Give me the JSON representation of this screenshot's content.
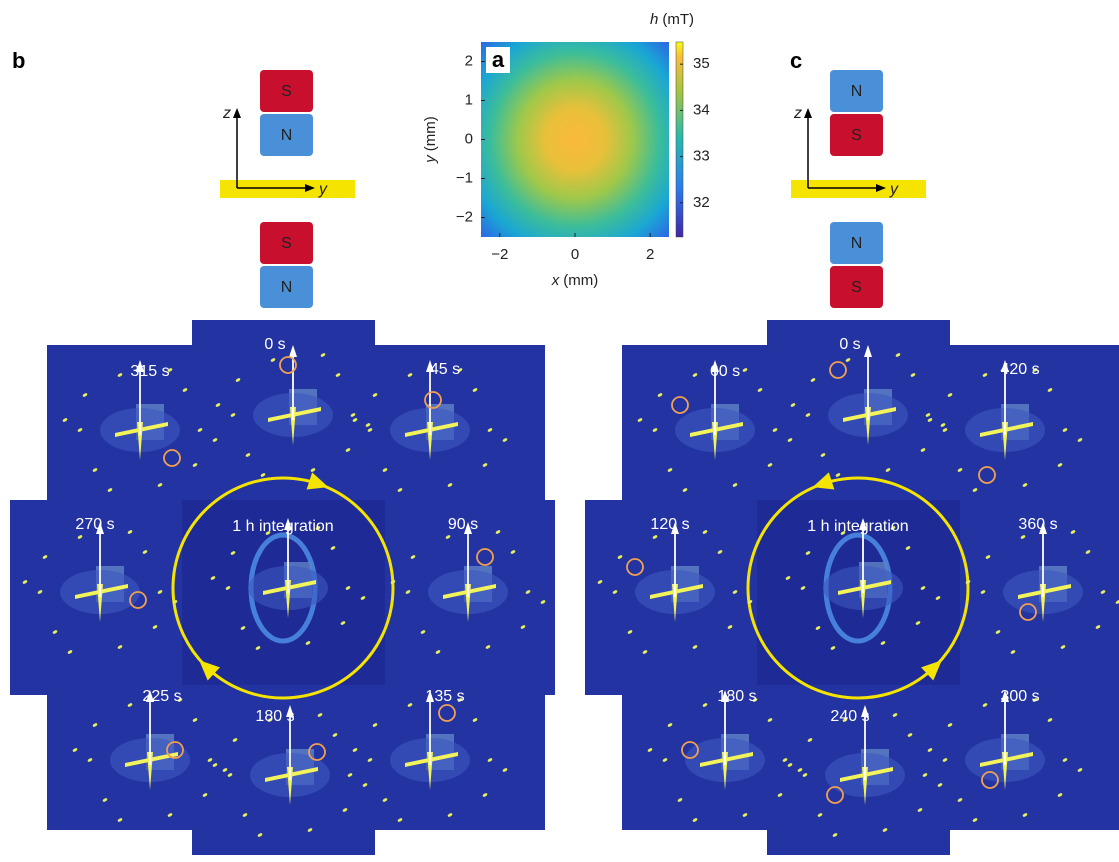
{
  "panel_a": {
    "label": "a",
    "x_axis": {
      "var": "x",
      "unit": "(mm)"
    },
    "y_axis": {
      "var": "y",
      "unit": "(mm)"
    },
    "xlim": [
      -2.5,
      2.5
    ],
    "xticks": [
      {
        "value": -2,
        "label": "−2"
      },
      0,
      2
    ],
    "ylim": [
      -2.5,
      2.5
    ],
    "yticks": [
      {
        "value": -2,
        "label": "−2"
      },
      {
        "value": -1,
        "label": "−1"
      },
      0,
      1,
      2
    ],
    "colorbar": {
      "title": {
        "var": "h",
        "unit": "(mT)"
      },
      "lim": [
        31.26,
        35.48
      ],
      "ticks": [
        32,
        33,
        34,
        35
      ]
    }
  },
  "panel_b": {
    "label": "b",
    "magnets_top": [
      "S",
      "N"
    ],
    "axes": {
      "z": "z",
      "y": "y"
    },
    "magnets_bottom": [
      "S",
      "N"
    ],
    "times": [
      "0 s",
      "45 s",
      "90 s",
      "135 s",
      "180 s",
      "225 s",
      "270 s",
      "315 s"
    ],
    "center_label": "1 h integration"
  },
  "panel_c": {
    "label": "c",
    "magnets_top": [
      "N",
      "S"
    ],
    "axes": {
      "z": "z",
      "y": "y"
    },
    "magnets_bottom": [
      "N",
      "S"
    ],
    "times": [
      "0 s",
      "60 s",
      "120 s",
      "180 s",
      "240 s",
      "300 s",
      "360 s",
      "420 s"
    ],
    "center_label": "1 h integration"
  }
}
